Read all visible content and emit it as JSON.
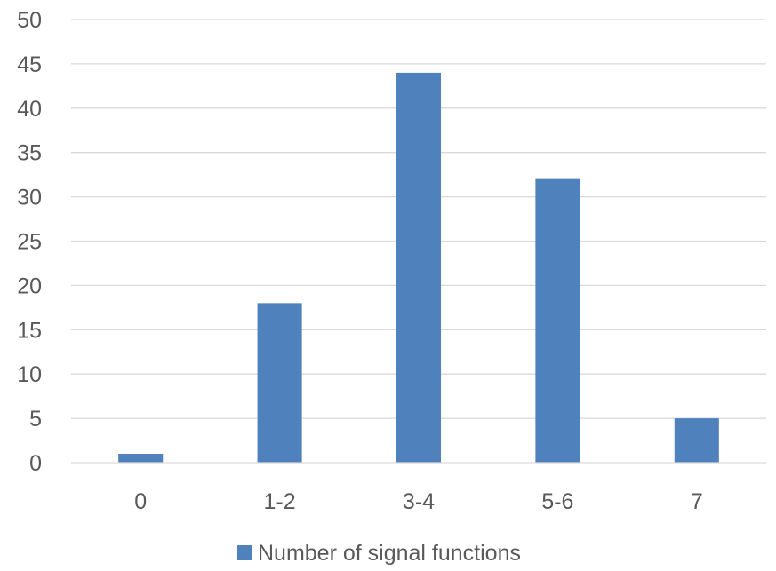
{
  "chart_data": {
    "type": "bar",
    "categories": [
      "0",
      "1-2",
      "3-4",
      "5-6",
      "7"
    ],
    "series": [
      {
        "name": "Number of signal functions",
        "values": [
          1,
          18,
          44,
          32,
          5
        ],
        "color": "#4f81bd"
      }
    ],
    "title": "",
    "xlabel": "",
    "ylabel": "",
    "ylim": [
      0,
      50
    ],
    "yticks": [
      0,
      5,
      10,
      15,
      20,
      25,
      30,
      35,
      40,
      45,
      50
    ],
    "grid": true,
    "legend_position": "bottom"
  }
}
